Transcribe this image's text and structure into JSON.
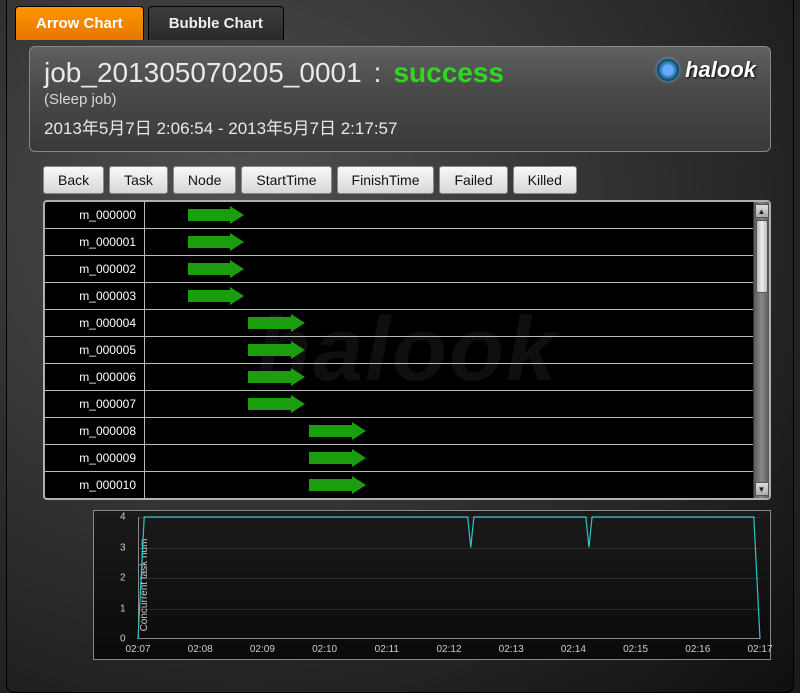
{
  "tabs": [
    {
      "label": "Arrow Chart",
      "active": true
    },
    {
      "label": "Bubble Chart",
      "active": false
    }
  ],
  "header": {
    "job_id": "job_201305070205_0001",
    "separator": ":",
    "status": "success",
    "status_color": "#2dd91e",
    "description": "(Sleep job)",
    "time_range": "2013年5月7日 2:06:54 - 2013年5月7日 2:17:57",
    "logo_text": "halook"
  },
  "buttons": [
    {
      "id": "back",
      "label": "Back"
    },
    {
      "id": "task",
      "label": "Task"
    },
    {
      "id": "node",
      "label": "Node"
    },
    {
      "id": "starttime",
      "label": "StartTime"
    },
    {
      "id": "finishtime",
      "label": "FinishTime"
    },
    {
      "id": "failed",
      "label": "Failed"
    },
    {
      "id": "killed",
      "label": "Killed"
    }
  ],
  "gantt": {
    "arrow_color": "#1a9e0e",
    "row_border_color": "#bbbbbb",
    "background_color": "#000000",
    "x_domain_pct": 100,
    "tasks": [
      {
        "label": "m_000000",
        "start_pct": 7,
        "len_pct": 7
      },
      {
        "label": "m_000001",
        "start_pct": 7,
        "len_pct": 7
      },
      {
        "label": "m_000002",
        "start_pct": 7,
        "len_pct": 7
      },
      {
        "label": "m_000003",
        "start_pct": 7,
        "len_pct": 7
      },
      {
        "label": "m_000004",
        "start_pct": 17,
        "len_pct": 7
      },
      {
        "label": "m_000005",
        "start_pct": 17,
        "len_pct": 7
      },
      {
        "label": "m_000006",
        "start_pct": 17,
        "len_pct": 7
      },
      {
        "label": "m_000007",
        "start_pct": 17,
        "len_pct": 7
      },
      {
        "label": "m_000008",
        "start_pct": 27,
        "len_pct": 7
      },
      {
        "label": "m_000009",
        "start_pct": 27,
        "len_pct": 7
      },
      {
        "label": "m_000010",
        "start_pct": 27,
        "len_pct": 7
      }
    ],
    "watermark_text": "halook",
    "scroll_thumb_height_pct": 28
  },
  "line_chart": {
    "ylabel": "Concurrent task num",
    "line_color": "#2bc6c6",
    "line_color_dark": "#1a8888",
    "ylim": [
      0,
      4
    ],
    "yticks": [
      0,
      1,
      2,
      3,
      4
    ],
    "xticks": [
      "02:07",
      "02:08",
      "02:09",
      "02:10",
      "02:11",
      "02:12",
      "02:13",
      "02:14",
      "02:15",
      "02:16",
      "02:17"
    ],
    "series": [
      {
        "x": 0.0,
        "y": 0
      },
      {
        "x": 0.01,
        "y": 4
      },
      {
        "x": 0.53,
        "y": 4
      },
      {
        "x": 0.535,
        "y": 3
      },
      {
        "x": 0.54,
        "y": 4
      },
      {
        "x": 0.72,
        "y": 4
      },
      {
        "x": 0.725,
        "y": 3
      },
      {
        "x": 0.73,
        "y": 4
      },
      {
        "x": 0.99,
        "y": 4
      },
      {
        "x": 1.0,
        "y": 0
      }
    ],
    "grid_color": "rgba(200,200,200,0.15)",
    "axis_color": "#888888",
    "background": "#0a0a0a",
    "label_fontsize": 10,
    "tick_fontsize": 10
  }
}
